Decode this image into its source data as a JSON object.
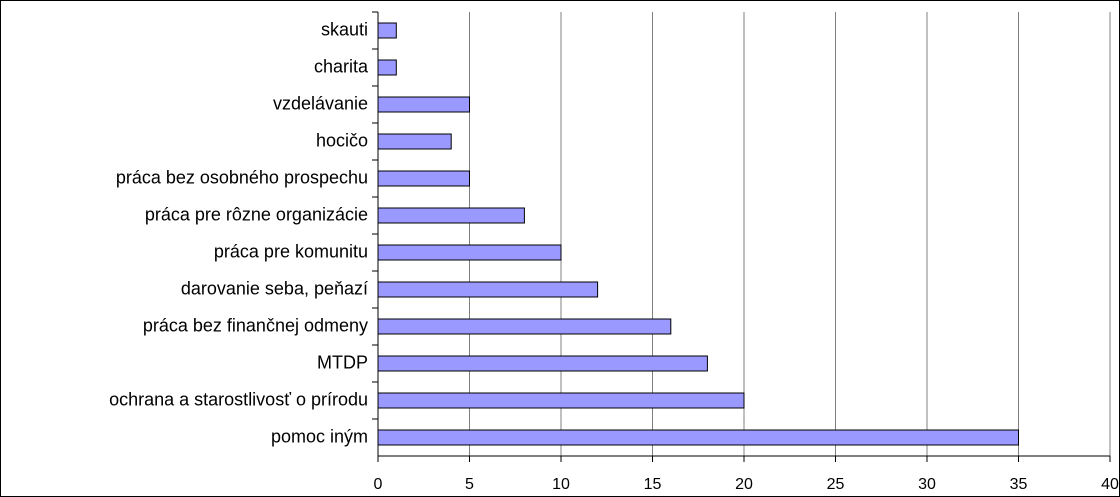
{
  "chart_data": {
    "type": "barh",
    "categories": [
      "skauti",
      "charita",
      "vzdelávanie",
      "hocičo",
      "práca bez osobného prospechu",
      "práca pre rôzne organizácie",
      "práca pre komunitu",
      "darovanie seba, peňazí",
      "práca bez finančnej odmeny",
      "MTDP",
      "ochrana a starostlivosť o prírodu",
      "pomoc iným"
    ],
    "values": [
      1,
      1,
      5,
      4,
      5,
      8,
      10,
      12,
      16,
      18,
      20,
      35
    ],
    "color": "#9999ff",
    "xlim": [
      0,
      40
    ],
    "xticks": [
      0,
      5,
      10,
      15,
      20,
      25,
      30,
      35,
      40
    ],
    "grid": true
  }
}
